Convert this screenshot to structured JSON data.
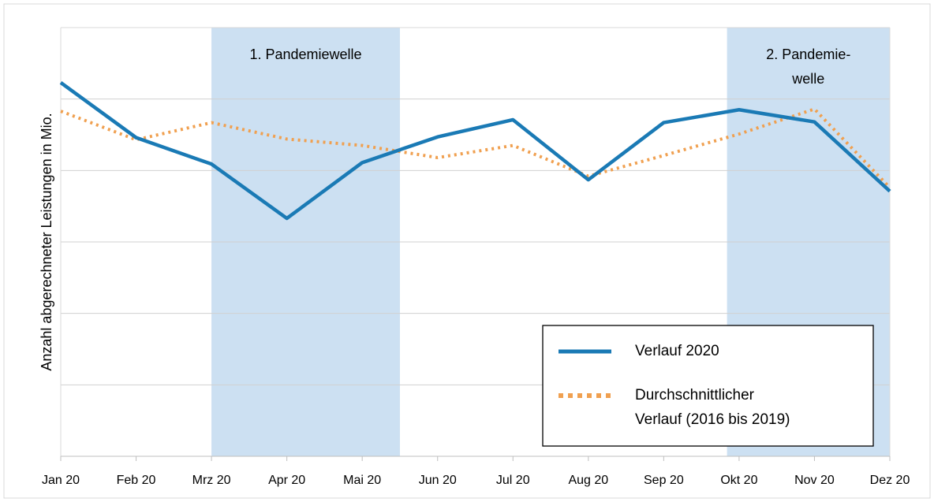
{
  "chart_data": {
    "type": "line",
    "y_axis_label": "Anzahl abgerechneter Leistungen in Mio.",
    "categories": [
      "Jan 20",
      "Feb 20",
      "Mrz 20",
      "Apr 20",
      "Mai 20",
      "Jun 20",
      "Jul 20",
      "Aug 20",
      "Sep 20",
      "Okt 20",
      "Nov 20",
      "Dez 20"
    ],
    "series": [
      {
        "name": "Verlauf 2020",
        "color": "#1a7ab5",
        "dashed": false,
        "values": [
          5.23,
          4.46,
          4.09,
          3.33,
          4.11,
          4.47,
          4.71,
          3.87,
          4.67,
          4.85,
          4.68,
          3.71
        ]
      },
      {
        "name": "Durchschnittlicher Verlauf (2016 bis 2019)",
        "name_lines": [
          "Durchschnittlicher",
          "Verlauf (2016 bis 2019)"
        ],
        "color": "#f0a050",
        "dashed": true,
        "values": [
          4.83,
          4.43,
          4.67,
          4.44,
          4.35,
          4.18,
          4.35,
          3.92,
          4.21,
          4.51,
          4.86,
          3.76
        ]
      }
    ],
    "bands": [
      {
        "label_lines": [
          "1. Pandemiewelle"
        ],
        "from": 2,
        "to": 4.5
      },
      {
        "label_lines": [
          "2. Pandemie-",
          "welle"
        ],
        "from": 8.84,
        "to": 11
      }
    ],
    "band_color": "#cce0f2",
    "ylim": [
      0,
      6
    ],
    "yticks": [
      0,
      1,
      2,
      3,
      4,
      5
    ],
    "grid": true,
    "legend": "lower right"
  }
}
